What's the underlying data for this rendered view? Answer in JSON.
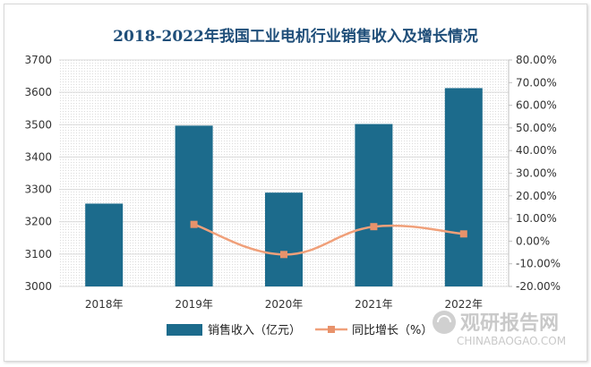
{
  "chart_data": {
    "type": "bar",
    "title": "2018-2022年我国工业电机行业销售收入及增长情况",
    "categories": [
      "2018年",
      "2019年",
      "2020年",
      "2021年",
      "2022年"
    ],
    "series": [
      {
        "name": "销售收入（亿元）",
        "type": "bar",
        "axis": "left",
        "color": "#1c6b8c",
        "values": [
          3256,
          3497,
          3290,
          3502,
          3613
        ]
      },
      {
        "name": "同比增长（%）",
        "type": "line",
        "axis": "right",
        "color": "#f0a07a",
        "values": [
          null,
          7.4,
          -5.9,
          6.4,
          3.2
        ]
      }
    ],
    "ylim_left": [
      3000,
      3700
    ],
    "yticks_left": [
      "3700",
      "3600",
      "3500",
      "3400",
      "3300",
      "3200",
      "3100",
      "3000"
    ],
    "ylim_right": [
      -20,
      80
    ],
    "yticks_right": [
      "80.00%",
      "70.00%",
      "60.00%",
      "50.00%",
      "40.00%",
      "30.00%",
      "20.00%",
      "10.00%",
      "0.00%",
      "-10.00%",
      "-20.00%"
    ],
    "grid": true,
    "legend_position": "bottom"
  },
  "watermark": {
    "text": "观研报告网",
    "sub": "CHINABAOGAO.COM"
  }
}
